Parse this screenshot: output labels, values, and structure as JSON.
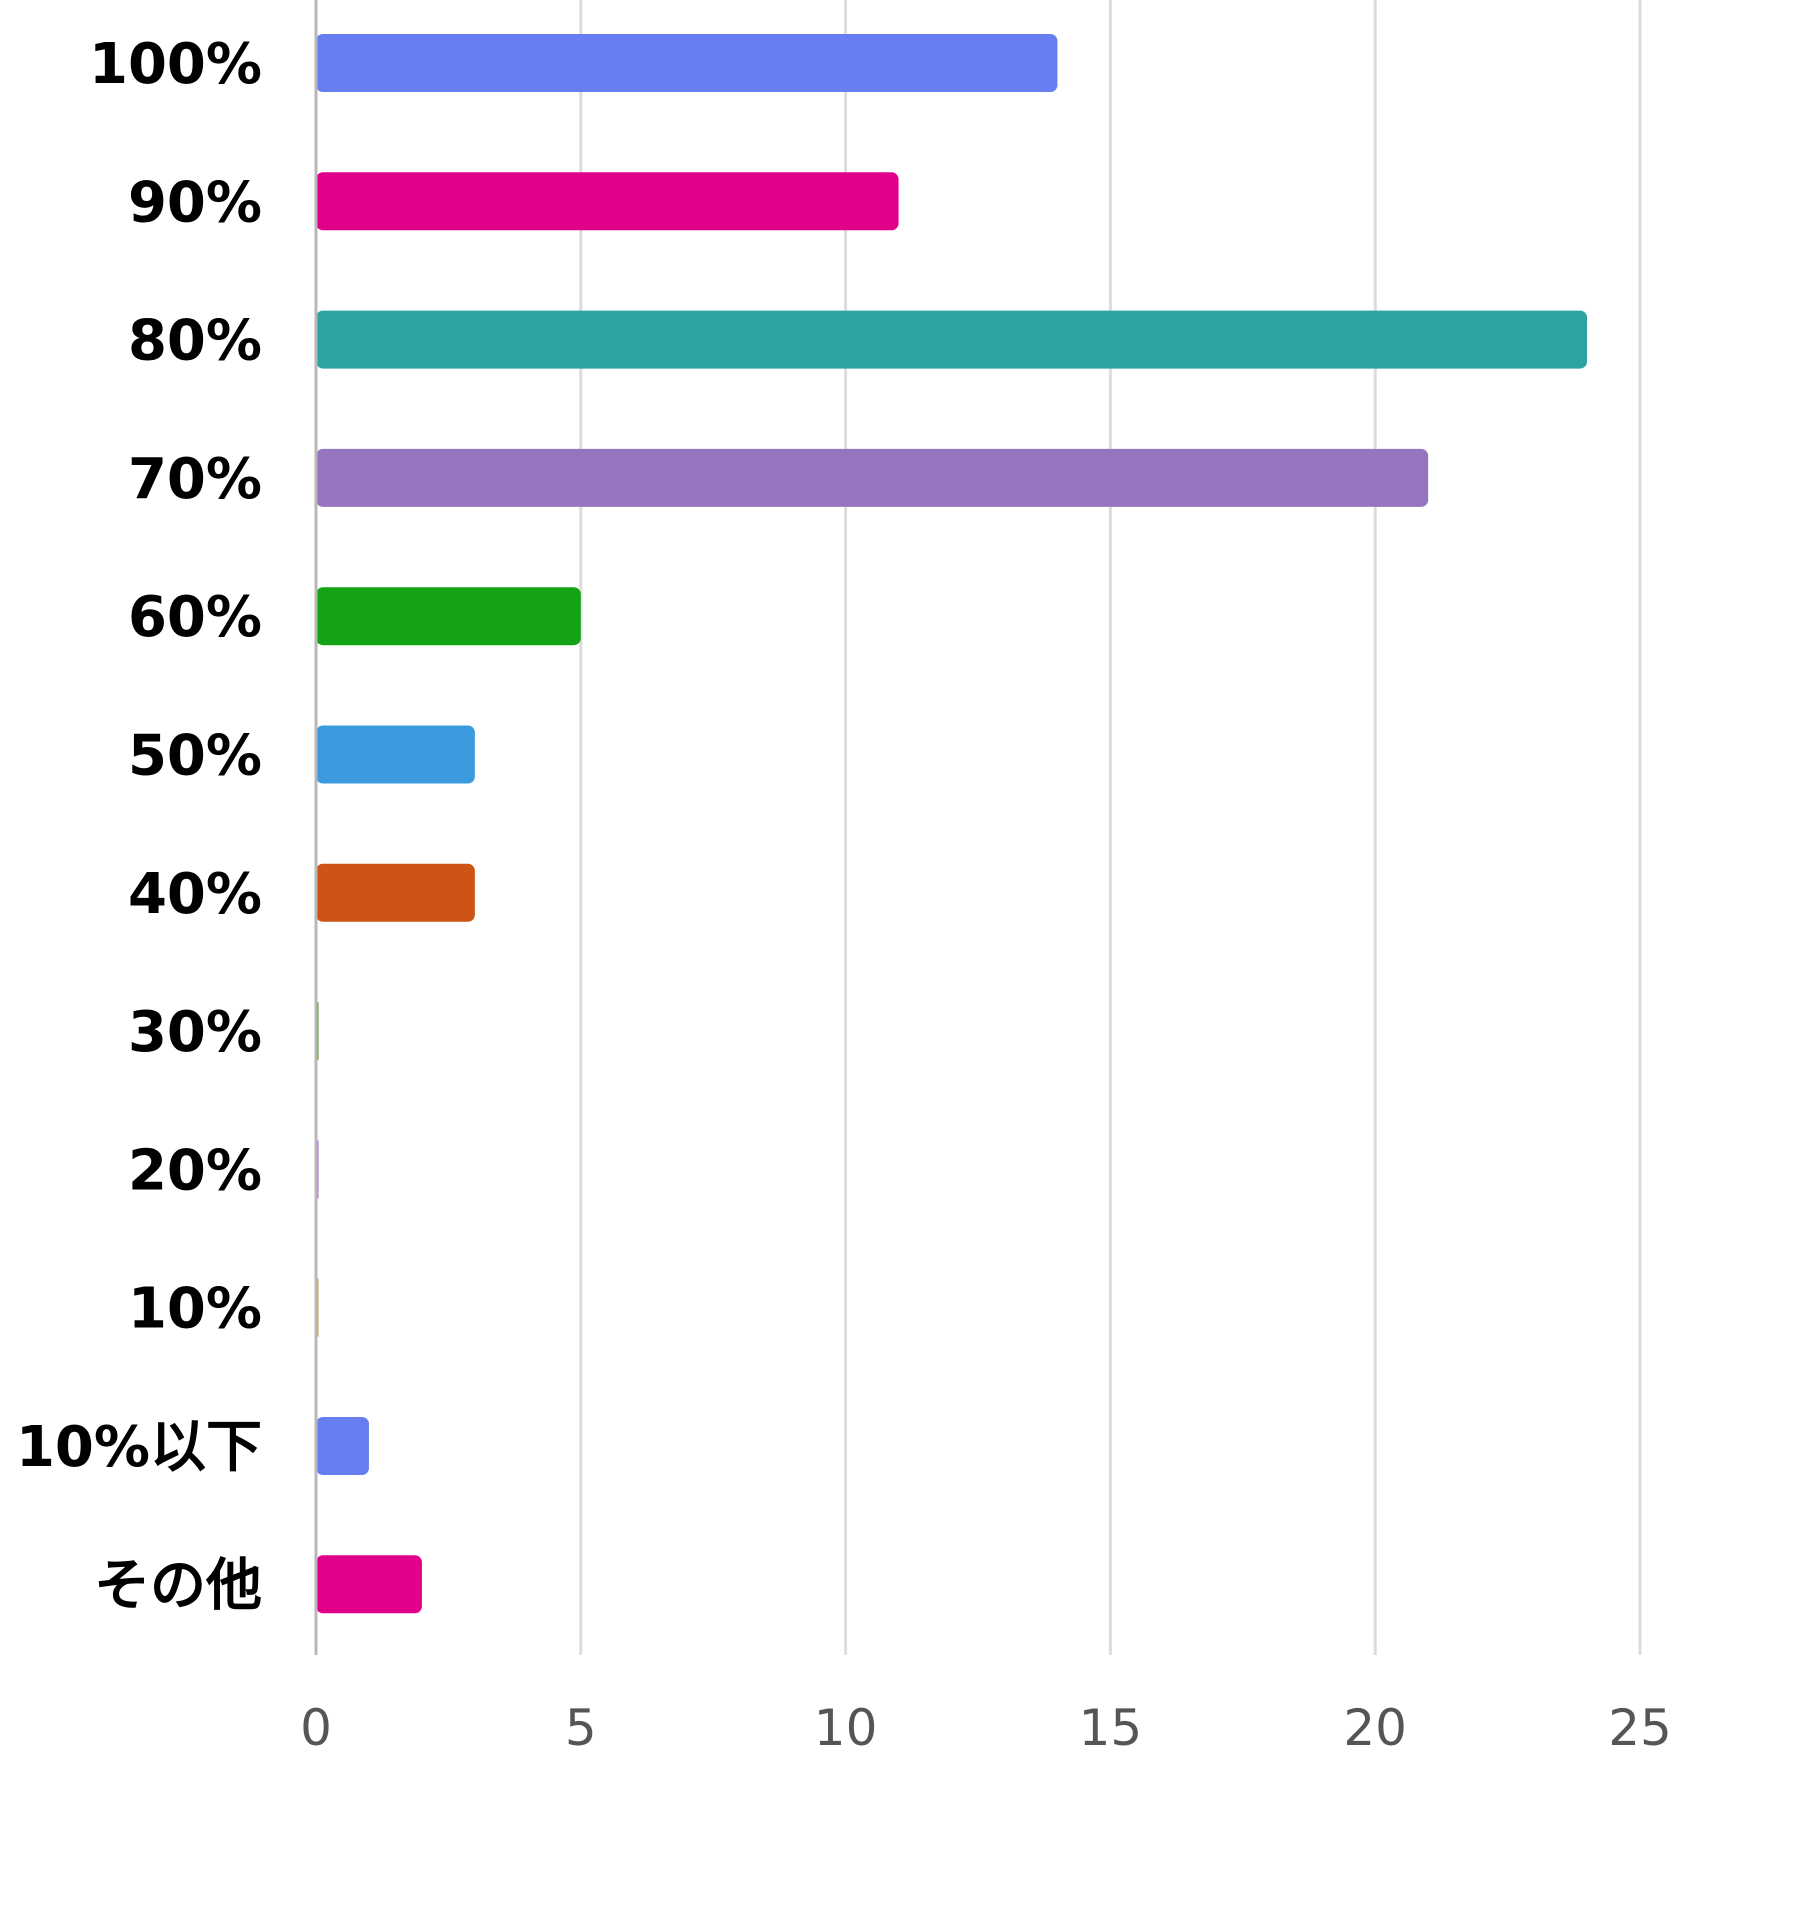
{
  "chart_data": {
    "type": "bar",
    "orientation": "horizontal",
    "title": "",
    "xlabel": "",
    "ylabel": "",
    "categories": [
      "100%",
      "90%",
      "80%",
      "70%",
      "60%",
      "50%",
      "40%",
      "30%",
      "20%",
      "10%",
      "10%以下",
      "その他"
    ],
    "values": [
      14,
      11,
      24,
      21,
      5,
      3,
      3,
      0,
      0,
      0,
      1,
      2
    ],
    "colors": [
      "#667eef",
      "#e0008a",
      "#2ea3a3",
      "#9575bd",
      "#14a314",
      "#3c9ade",
      "#cc5414",
      "#5d9e2e",
      "#b86ad9",
      "#c9a84a",
      "#667eef",
      "#e0008a"
    ],
    "xlim": [
      0,
      25
    ],
    "xticks": [
      0,
      5,
      10,
      15,
      20,
      25
    ],
    "grid": true,
    "legend": "none"
  }
}
